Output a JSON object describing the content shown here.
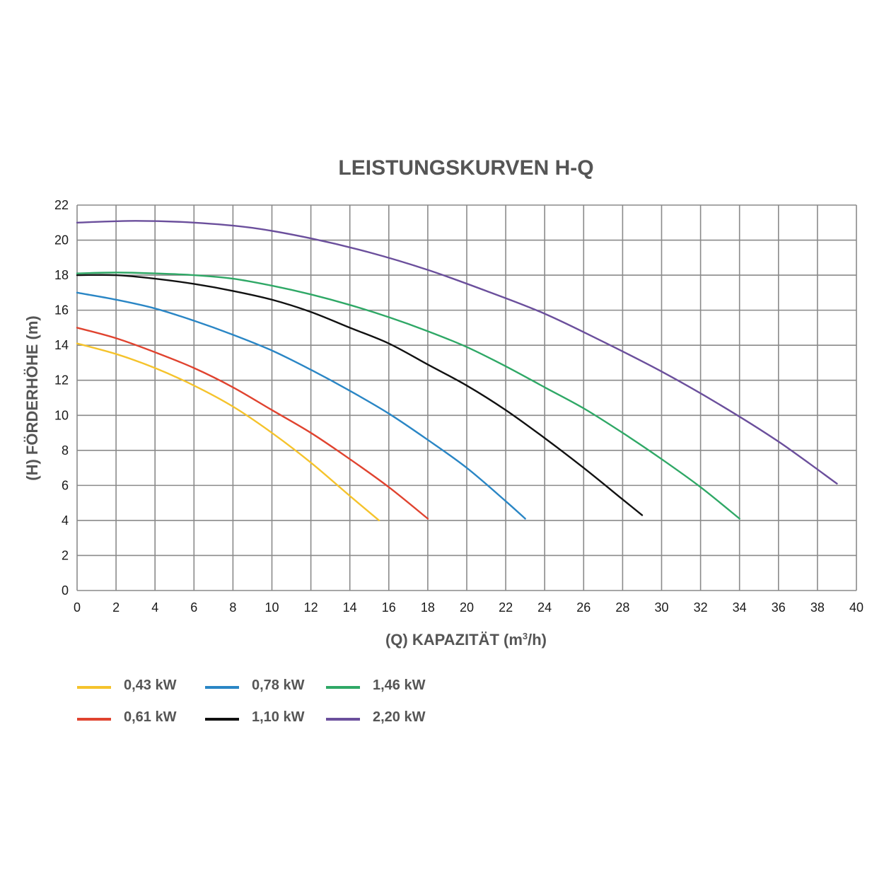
{
  "chart_data": {
    "type": "line",
    "title": "LEISTUNGSKURVEN H-Q",
    "xlabel_prefix": "(Q)  KAPAZITÄT  (m",
    "xlabel_sup": "3",
    "xlabel_suffix": "/h)",
    "ylabel": "(H)  FÖRDERHÖHE  (m)",
    "xlim": [
      0,
      40
    ],
    "ylim": [
      0,
      22
    ],
    "x_ticks": [
      "0",
      "2",
      "4",
      "6",
      "8",
      "10",
      "12",
      "14",
      "16",
      "18",
      "20",
      "22",
      "24",
      "26",
      "28",
      "30",
      "32",
      "34",
      "36",
      "38",
      "40"
    ],
    "y_ticks": [
      "0",
      "2",
      "4",
      "6",
      "8",
      "10",
      "12",
      "14",
      "16",
      "18",
      "20",
      "22"
    ],
    "grid": true,
    "legend_position": "bottom-left",
    "series": [
      {
        "name": "0,43 kW",
        "color": "#f5c32c",
        "x": [
          0,
          2,
          4,
          6,
          8,
          10,
          12,
          14,
          15.5
        ],
        "y": [
          14.1,
          13.5,
          12.7,
          11.7,
          10.5,
          9.0,
          7.3,
          5.4,
          4.0
        ]
      },
      {
        "name": "0,61 kW",
        "color": "#e0432f",
        "x": [
          0,
          2,
          4,
          6,
          8,
          10,
          12,
          14,
          16,
          18
        ],
        "y": [
          15.0,
          14.4,
          13.6,
          12.7,
          11.6,
          10.3,
          9.0,
          7.5,
          5.9,
          4.1
        ]
      },
      {
        "name": "0,78 kW",
        "color": "#2a86c5",
        "x": [
          0,
          2,
          4,
          6,
          8,
          10,
          12,
          14,
          16,
          18,
          20,
          22,
          23
        ],
        "y": [
          17.0,
          16.6,
          16.1,
          15.4,
          14.6,
          13.7,
          12.6,
          11.4,
          10.1,
          8.6,
          7.0,
          5.1,
          4.1
        ]
      },
      {
        "name": "1,10 kW",
        "color": "#111111",
        "x": [
          0,
          2,
          4,
          6,
          8,
          10,
          12,
          14,
          16,
          18,
          20,
          22,
          24,
          26,
          28,
          29
        ],
        "y": [
          18.0,
          18.0,
          17.8,
          17.5,
          17.1,
          16.6,
          15.9,
          15.0,
          14.1,
          12.9,
          11.7,
          10.3,
          8.7,
          7.0,
          5.2,
          4.3
        ]
      },
      {
        "name": "1,46 kW",
        "color": "#2fa866",
        "x": [
          0,
          2,
          4,
          6,
          8,
          10,
          12,
          14,
          16,
          18,
          20,
          22,
          24,
          26,
          28,
          30,
          32,
          34
        ],
        "y": [
          18.1,
          18.15,
          18.1,
          18.0,
          17.8,
          17.4,
          16.9,
          16.3,
          15.6,
          14.8,
          13.9,
          12.8,
          11.6,
          10.4,
          9.0,
          7.5,
          5.9,
          4.1
        ]
      },
      {
        "name": "2,20 kW",
        "color": "#6b4f9c",
        "x": [
          0,
          3,
          6,
          9,
          12,
          15,
          18,
          21,
          24,
          27,
          30,
          33,
          36,
          39
        ],
        "y": [
          21.0,
          21.1,
          21.0,
          20.7,
          20.1,
          19.3,
          18.3,
          17.1,
          15.8,
          14.2,
          12.5,
          10.6,
          8.5,
          6.1
        ]
      }
    ]
  }
}
